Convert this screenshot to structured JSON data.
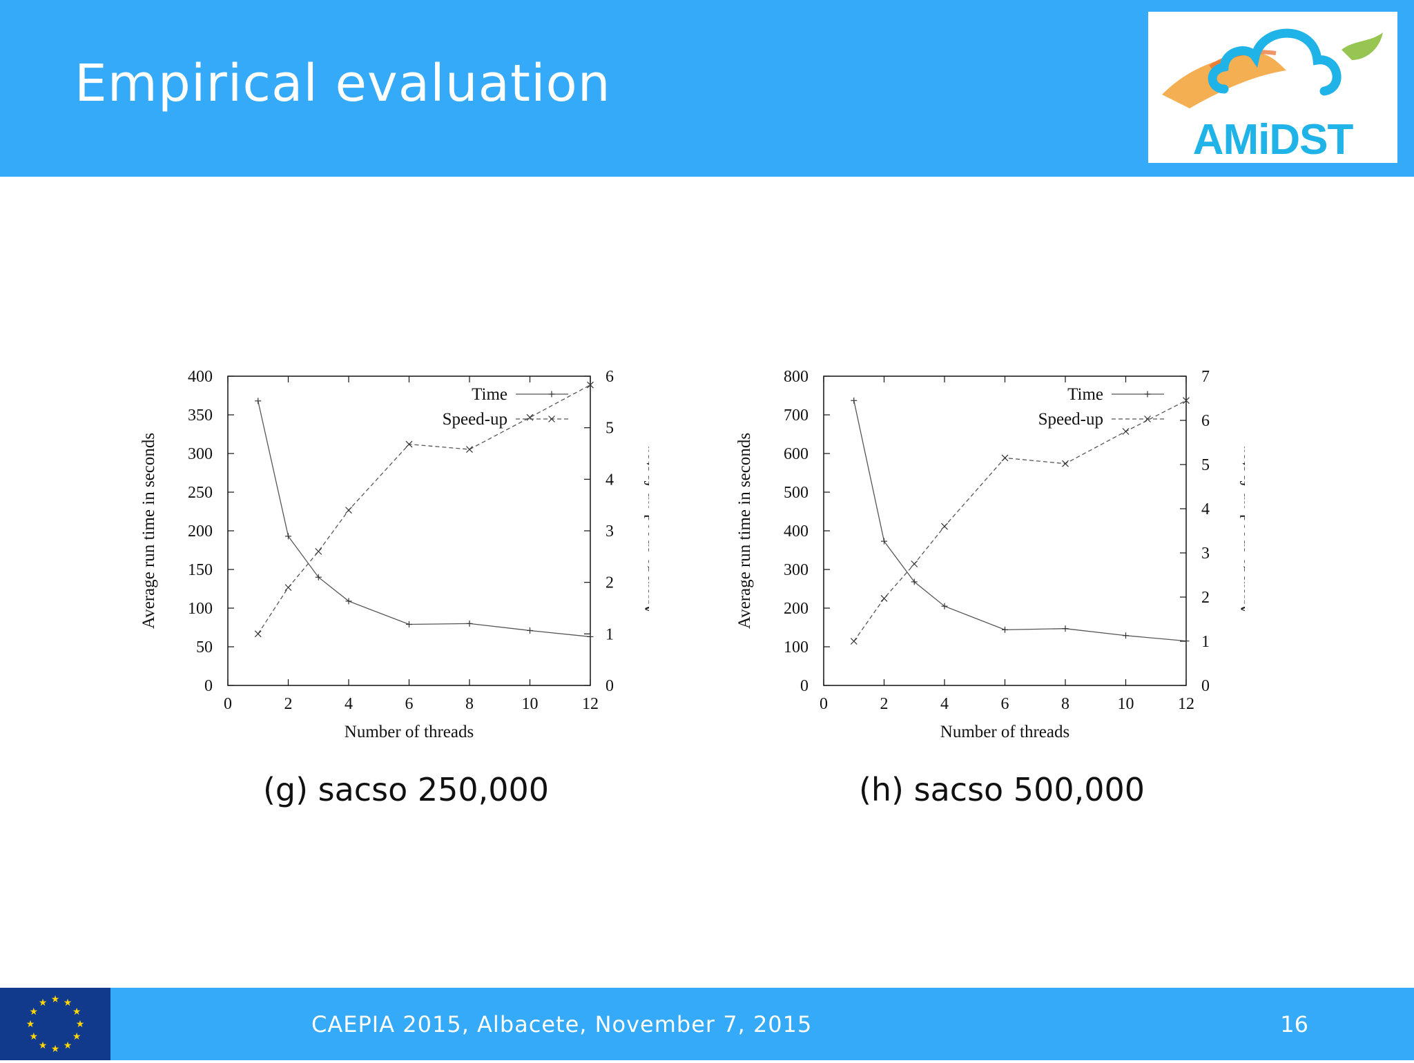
{
  "slide": {
    "title": "Empirical evaluation",
    "logo_text": "AMiDST",
    "footer_text": "CAEPIA 2015, Albacete, November 7, 2015",
    "page_number": "16"
  },
  "colors": {
    "header_bg": "#35aaf9",
    "logo_text": "#1fb3e8",
    "eu_flag_bg": "#123a8c",
    "eu_flag_stars": "#ffd700"
  },
  "chart_data": [
    {
      "type": "line",
      "caption": "(g) sacso 250,000",
      "xlabel": "Number of threads",
      "ylabel": "Average run time in seconds",
      "y2label": "Average speed-up factor",
      "xlim": [
        0,
        12
      ],
      "ylim": [
        0,
        400
      ],
      "y2lim": [
        0,
        6
      ],
      "xticks": [
        0,
        2,
        4,
        6,
        8,
        10,
        12
      ],
      "yticks": [
        0,
        50,
        100,
        150,
        200,
        250,
        300,
        350,
        400
      ],
      "y2ticks": [
        0,
        1,
        2,
        3,
        4,
        5,
        6
      ],
      "legend": "top-right",
      "series": [
        {
          "name": "Time",
          "axis": "left",
          "marker": "+",
          "dash": "solid",
          "x": [
            1,
            2,
            3,
            4,
            6,
            8,
            10,
            12
          ],
          "y": [
            368,
            193,
            140,
            109,
            79,
            80,
            71,
            63
          ]
        },
        {
          "name": "Speed-up",
          "axis": "right",
          "marker": "x",
          "dash": "dashed",
          "x": [
            1,
            2,
            3,
            4,
            6,
            8,
            10,
            12
          ],
          "y": [
            1.0,
            1.9,
            2.6,
            3.4,
            4.68,
            4.58,
            5.2,
            5.83
          ]
        }
      ]
    },
    {
      "type": "line",
      "caption": "(h) sacso 500,000",
      "xlabel": "Number of threads",
      "ylabel": "Average run time in seconds",
      "y2label": "Average speed-up factor",
      "xlim": [
        0,
        12
      ],
      "ylim": [
        0,
        800
      ],
      "y2lim": [
        0,
        7
      ],
      "xticks": [
        0,
        2,
        4,
        6,
        8,
        10,
        12
      ],
      "yticks": [
        0,
        100,
        200,
        300,
        400,
        500,
        600,
        700,
        800
      ],
      "y2ticks": [
        0,
        1,
        2,
        3,
        4,
        5,
        6,
        7
      ],
      "legend": "top-right",
      "series": [
        {
          "name": "Time",
          "axis": "left",
          "marker": "+",
          "dash": "solid",
          "x": [
            1,
            2,
            3,
            4,
            6,
            8,
            10,
            12
          ],
          "y": [
            737,
            373,
            268,
            205,
            144,
            147,
            129,
            115
          ]
        },
        {
          "name": "Speed-up",
          "axis": "right",
          "marker": "x",
          "dash": "dashed",
          "x": [
            1,
            2,
            3,
            4,
            6,
            8,
            10,
            12
          ],
          "y": [
            1.0,
            1.97,
            2.75,
            3.6,
            5.15,
            5.02,
            5.75,
            6.45
          ]
        }
      ]
    }
  ]
}
